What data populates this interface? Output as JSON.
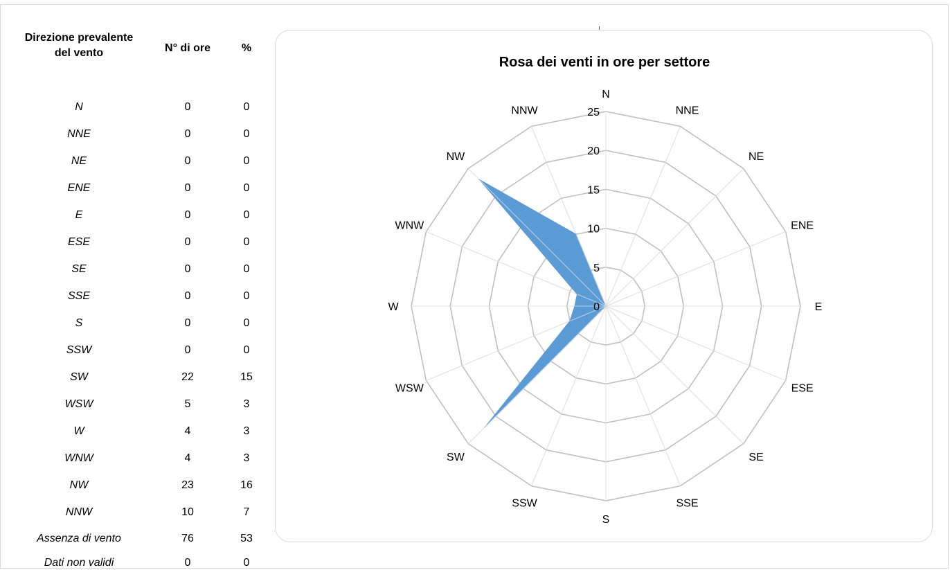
{
  "table": {
    "headers": {
      "direction": "Direzione prevalente del vento",
      "hours": "N° di ore",
      "percent": "%"
    },
    "rows": [
      {
        "dir": "N",
        "hours": "0",
        "pct": "0"
      },
      {
        "dir": "NNE",
        "hours": "0",
        "pct": "0"
      },
      {
        "dir": "NE",
        "hours": "0",
        "pct": "0"
      },
      {
        "dir": "ENE",
        "hours": "0",
        "pct": "0"
      },
      {
        "dir": "E",
        "hours": "0",
        "pct": "0"
      },
      {
        "dir": "ESE",
        "hours": "0",
        "pct": "0"
      },
      {
        "dir": "SE",
        "hours": "0",
        "pct": "0"
      },
      {
        "dir": "SSE",
        "hours": "0",
        "pct": "0"
      },
      {
        "dir": "S",
        "hours": "0",
        "pct": "0"
      },
      {
        "dir": "SSW",
        "hours": "0",
        "pct": "0"
      },
      {
        "dir": "SW",
        "hours": "22",
        "pct": "15"
      },
      {
        "dir": "WSW",
        "hours": "5",
        "pct": "3"
      },
      {
        "dir": "W",
        "hours": "4",
        "pct": "3"
      },
      {
        "dir": "WNW",
        "hours": "4",
        "pct": "3"
      },
      {
        "dir": "NW",
        "hours": "23",
        "pct": "16"
      },
      {
        "dir": "NNW",
        "hours": "10",
        "pct": "7"
      },
      {
        "dir": "Assenza di vento",
        "hours": "76",
        "pct": "53"
      },
      {
        "dir": "Dati non validi",
        "hours": "0",
        "pct": "0"
      }
    ]
  },
  "chart_data": {
    "type": "radar",
    "title": "Rosa dei venti in ore per settore",
    "categories": [
      "N",
      "NNE",
      "NE",
      "ENE",
      "E",
      "ESE",
      "SE",
      "SSE",
      "S",
      "SSW",
      "SW",
      "WSW",
      "W",
      "WNW",
      "NW",
      "NNW"
    ],
    "series": [
      {
        "values": [
          0,
          0,
          0,
          0,
          0,
          0,
          0,
          0,
          0,
          0,
          22,
          5,
          4,
          4,
          23,
          10
        ]
      }
    ],
    "rlim": [
      0,
      25
    ],
    "ticks": [
      "0",
      "5",
      "10",
      "15",
      "20",
      "25"
    ],
    "grid": true,
    "colors": {
      "fill": "#5B9BD5",
      "grid": "#c0c0c0",
      "spoke": "#d9d9d9"
    }
  }
}
